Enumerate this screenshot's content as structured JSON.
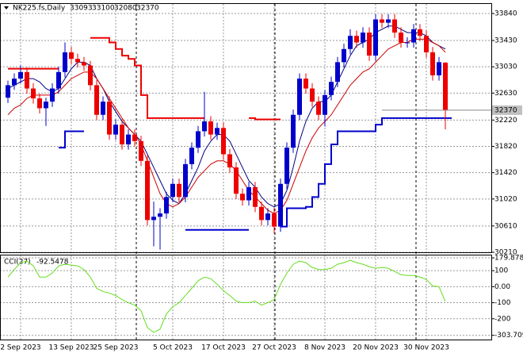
{
  "chart_data": [
    {
      "type": "candlestick",
      "title": "NK225.fs,Daily",
      "categories": [
        null,
        null,
        "2 Sep 2023",
        null,
        null,
        null,
        null,
        null,
        null,
        null,
        "13 Sep 2023",
        null,
        null,
        null,
        null,
        null,
        null,
        "25 Sep 2023",
        null,
        null,
        null,
        null,
        null,
        null,
        null,
        null,
        "5 Oct 2023",
        null,
        null,
        null,
        null,
        null,
        null,
        null,
        "17 Oct 2023",
        null,
        null,
        null,
        null,
        null,
        null,
        null,
        "27 Oct 2023",
        null,
        null,
        null,
        null,
        null,
        null,
        null,
        "8 Nov 2023",
        null,
        null,
        null,
        null,
        null,
        null,
        null,
        "20 Nov 2023",
        null,
        null,
        null,
        null,
        null,
        null,
        null,
        "30 Nov 2023",
        null,
        null,
        null
      ],
      "open": [
        32560,
        32750,
        32850,
        32950,
        32700,
        32550,
        32400,
        32500,
        32700,
        32950,
        33250,
        33150,
        33100,
        33050,
        32750,
        32300,
        32500,
        32000,
        32150,
        31850,
        32000,
        31900,
        31600,
        30700,
        30750,
        30800,
        31050,
        31250,
        31050,
        31550,
        31800,
        32050,
        32200,
        32000,
        32100,
        31700,
        31500,
        31100,
        31000,
        31200,
        30900,
        30700,
        30800,
        30600,
        31250,
        31800,
        32300,
        32850,
        32700,
        32500,
        32300,
        32600,
        32800,
        33100,
        33300,
        33500,
        33400,
        33550,
        33200,
        33750,
        33700,
        33750,
        33550,
        33400,
        33400,
        33600,
        33500,
        33250,
        32900,
        33093
      ],
      "high": [
        32820,
        32930,
        33050,
        33020,
        32780,
        32620,
        32560,
        32780,
        33030,
        33400,
        33330,
        33230,
        33180,
        33120,
        32830,
        32580,
        32580,
        32230,
        32230,
        32080,
        32080,
        31980,
        31680,
        30980,
        30880,
        31130,
        31330,
        31330,
        31630,
        31880,
        32130,
        32650,
        32280,
        32180,
        32180,
        31780,
        31580,
        31180,
        31280,
        31280,
        30980,
        30880,
        30880,
        31330,
        31880,
        32380,
        32930,
        32930,
        32780,
        32580,
        32680,
        32880,
        33180,
        33380,
        33600,
        33580,
        33630,
        33630,
        33830,
        33830,
        33830,
        33830,
        33630,
        33480,
        33680,
        33680,
        33580,
        33330,
        33180,
        33100
      ],
      "low": [
        32480,
        32680,
        32780,
        32620,
        32470,
        32320,
        32130,
        32420,
        32620,
        32870,
        33070,
        33020,
        32970,
        32670,
        32220,
        32220,
        31920,
        31920,
        31770,
        31770,
        31820,
        31520,
        30620,
        30300,
        30250,
        30720,
        30970,
        30970,
        30970,
        31470,
        31720,
        31970,
        31920,
        31920,
        31620,
        31420,
        31020,
        30920,
        30920,
        30820,
        30620,
        30620,
        30500,
        30520,
        31170,
        31720,
        32220,
        32620,
        32420,
        32220,
        32120,
        32520,
        32720,
        33020,
        33220,
        33320,
        33320,
        33120,
        33120,
        33620,
        33620,
        33470,
        33320,
        33320,
        33320,
        33420,
        33170,
        32820,
        32820,
        32080
      ],
      "close": [
        32750,
        32850,
        32950,
        32700,
        32550,
        32400,
        32500,
        32700,
        32950,
        33250,
        33150,
        33100,
        33050,
        32750,
        32300,
        32500,
        32000,
        32150,
        31850,
        32000,
        31900,
        31600,
        30700,
        30750,
        30800,
        31050,
        31250,
        31050,
        31550,
        31800,
        32050,
        32200,
        32000,
        32100,
        31700,
        31500,
        31100,
        31000,
        31200,
        30900,
        30700,
        30800,
        30600,
        31250,
        31800,
        32300,
        32850,
        32700,
        32500,
        32300,
        32600,
        32800,
        33100,
        33300,
        33500,
        33400,
        33550,
        33200,
        33750,
        33700,
        33750,
        33550,
        33400,
        33400,
        33600,
        33500,
        33250,
        32900,
        33100,
        32370
      ],
      "up_color": "#0000cc",
      "down_color": "#ee0000",
      "series": [
        {
          "color": "#000080",
          "values": [
            32700,
            32750,
            32800,
            32850,
            32850,
            32800,
            32700,
            32650,
            32700,
            32850,
            33000,
            33100,
            33100,
            33050,
            32850,
            32700,
            32500,
            32350,
            32200,
            32100,
            32000,
            31900,
            31700,
            31500,
            31300,
            31100,
            31000,
            30950,
            31100,
            31300,
            31500,
            31750,
            31900,
            32000,
            32000,
            31900,
            31700,
            31500,
            31300,
            31200,
            31050,
            30950,
            30900,
            30950,
            31150,
            31500,
            31900,
            32200,
            32400,
            32500,
            32500,
            32600,
            32800,
            33000,
            33200,
            33350,
            33400,
            33450,
            33550,
            33600,
            33650,
            33650,
            33600,
            33550,
            33550,
            33550,
            33500,
            33400,
            33350,
            33300
          ]
        },
        {
          "color": "#cc0000",
          "values": [
            32300,
            32400,
            32450,
            32550,
            32600,
            32600,
            32600,
            32600,
            32650,
            32750,
            32850,
            32900,
            32950,
            32950,
            32850,
            32700,
            32550,
            32400,
            32250,
            32100,
            32000,
            31850,
            31600,
            31350,
            31100,
            30950,
            30900,
            30950,
            31050,
            31200,
            31350,
            31450,
            31550,
            31600,
            31600,
            31550,
            31450,
            31300,
            31150,
            31050,
            30950,
            30850,
            30800,
            30850,
            31000,
            31250,
            31500,
            31750,
            31950,
            32100,
            32200,
            32300,
            32450,
            32600,
            32750,
            32850,
            32950,
            33000,
            33100,
            33200,
            33300,
            33350,
            33400,
            33400,
            33450,
            33450,
            33450,
            33400,
            33350,
            33250
          ]
        },
        {
          "color": "#ee0000",
          "step": true,
          "values": [
            33000,
            33000,
            33000,
            33000,
            33000,
            33000,
            33000,
            33000,
            null,
            null,
            null,
            null,
            null,
            33470,
            33470,
            33470,
            33400,
            33300,
            33200,
            33150,
            33050,
            32600,
            32250,
            32250,
            32250,
            32250,
            32250,
            32250,
            32250,
            32250,
            32250,
            null,
            null,
            null,
            null,
            null,
            null,
            null,
            32250,
            32230,
            32230,
            32230,
            32230,
            null,
            null,
            null,
            null,
            null,
            null,
            null,
            null,
            null,
            null,
            null,
            null,
            null,
            null,
            null,
            null,
            null,
            null,
            null,
            null,
            null,
            null,
            null,
            null,
            null,
            null,
            null
          ]
        },
        {
          "color": "#0000cc",
          "step": true,
          "values": [
            null,
            null,
            null,
            null,
            null,
            null,
            null,
            null,
            31800,
            32050,
            32050,
            32050,
            null,
            null,
            null,
            null,
            null,
            null,
            null,
            null,
            null,
            null,
            null,
            null,
            null,
            null,
            null,
            null,
            30550,
            30550,
            30550,
            30550,
            30550,
            30550,
            30550,
            30550,
            30550,
            30550,
            null,
            null,
            null,
            null,
            null,
            30600,
            30880,
            30880,
            30880,
            30900,
            31050,
            31250,
            31550,
            31850,
            32050,
            32050,
            32050,
            32050,
            32050,
            32050,
            32150,
            32250,
            32250,
            32250,
            32250,
            32250,
            32250,
            32250,
            32250,
            32250,
            32250,
            32250
          ]
        }
      ],
      "ylim": [
        30210,
        33985
      ],
      "yticks": [
        33840,
        33430,
        33030,
        32630,
        32220,
        31820,
        31420,
        31020,
        30610,
        30210
      ],
      "grid": true
    },
    {
      "type": "line",
      "title": "CCI(27)",
      "color": "#66dd22",
      "values": [
        60,
        107,
        150,
        160,
        130,
        60,
        60,
        85,
        130,
        140,
        135,
        130,
        107,
        60,
        -10,
        -30,
        -40,
        -55,
        -80,
        -100,
        -115,
        -150,
        -255,
        -285,
        -265,
        -170,
        -125,
        -100,
        -55,
        -10,
        37,
        60,
        50,
        15,
        -25,
        -55,
        -90,
        -100,
        -100,
        -90,
        -115,
        -100,
        -80,
        15,
        85,
        140,
        160,
        150,
        120,
        107,
        107,
        115,
        140,
        150,
        165,
        150,
        140,
        125,
        115,
        120,
        115,
        95,
        75,
        70,
        70,
        60,
        45,
        5,
        0,
        -92.5478
      ],
      "ylim": [
        -330,
        195
      ],
      "yticks": [
        {
          "value": 179.8788,
          "label": "179.8788"
        },
        100,
        {
          "value": 0,
          "label": "0.00"
        },
        -100,
        -200,
        {
          "value": -303.709,
          "label": "-303.709"
        }
      ],
      "grid": true
    }
  ]
}
